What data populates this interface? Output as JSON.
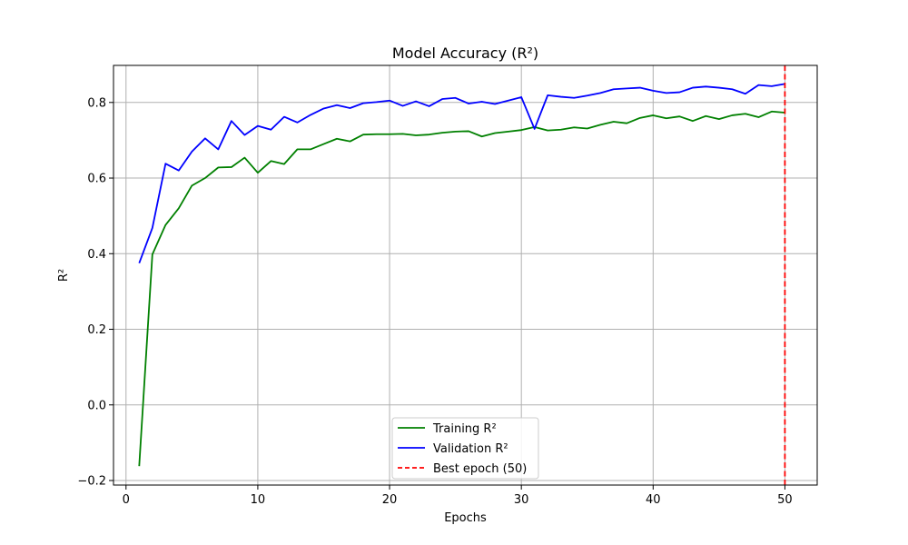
{
  "chart_data": {
    "type": "line",
    "title": "Model Accuracy (R²)",
    "xlabel": "Epochs",
    "ylabel": "R²",
    "xlim": [
      -0.95,
      52.45
    ],
    "ylim": [
      -0.212,
      0.898
    ],
    "xticks": [
      0,
      10,
      20,
      30,
      40,
      50
    ],
    "yticks": [
      -0.2,
      0.0,
      0.2,
      0.4,
      0.6,
      0.8
    ],
    "xtick_labels": [
      "0",
      "10",
      "20",
      "30",
      "40",
      "50"
    ],
    "ytick_labels": [
      "−0.2",
      "0.0",
      "0.2",
      "0.4",
      "0.6",
      "0.8"
    ],
    "grid": true,
    "legend_position": "lower-center",
    "x": [
      1,
      2,
      3,
      4,
      5,
      6,
      7,
      8,
      9,
      10,
      11,
      12,
      13,
      14,
      15,
      16,
      17,
      18,
      19,
      20,
      21,
      22,
      23,
      24,
      25,
      26,
      27,
      28,
      29,
      30,
      31,
      32,
      33,
      34,
      35,
      36,
      37,
      38,
      39,
      40,
      41,
      42,
      43,
      44,
      45,
      46,
      47,
      48,
      49,
      50
    ],
    "series": [
      {
        "name": "Training R²",
        "color": "#008000",
        "style": "solid",
        "values": [
          -0.162,
          0.398,
          0.476,
          0.52,
          0.58,
          0.6,
          0.628,
          0.629,
          0.654,
          0.614,
          0.645,
          0.637,
          0.676,
          0.676,
          0.69,
          0.704,
          0.697,
          0.715,
          0.716,
          0.716,
          0.717,
          0.713,
          0.715,
          0.72,
          0.723,
          0.724,
          0.71,
          0.719,
          0.723,
          0.727,
          0.735,
          0.726,
          0.728,
          0.734,
          0.731,
          0.741,
          0.749,
          0.745,
          0.759,
          0.766,
          0.758,
          0.763,
          0.751,
          0.764,
          0.756,
          0.766,
          0.77,
          0.761,
          0.776,
          0.773
        ]
      },
      {
        "name": "Validation R²",
        "color": "#0000ff",
        "style": "solid",
        "values": [
          0.375,
          0.468,
          0.638,
          0.62,
          0.67,
          0.705,
          0.676,
          0.751,
          0.714,
          0.738,
          0.728,
          0.762,
          0.747,
          0.767,
          0.784,
          0.793,
          0.785,
          0.798,
          0.801,
          0.805,
          0.791,
          0.803,
          0.79,
          0.809,
          0.812,
          0.797,
          0.802,
          0.796,
          0.805,
          0.814,
          0.73,
          0.819,
          0.815,
          0.812,
          0.818,
          0.825,
          0.835,
          0.837,
          0.839,
          0.831,
          0.825,
          0.827,
          0.839,
          0.842,
          0.839,
          0.835,
          0.823,
          0.846,
          0.843,
          0.849
        ]
      }
    ],
    "vline": {
      "name": "Best epoch (50)",
      "x": 50,
      "color": "#ff0000",
      "style": "dashed"
    }
  }
}
